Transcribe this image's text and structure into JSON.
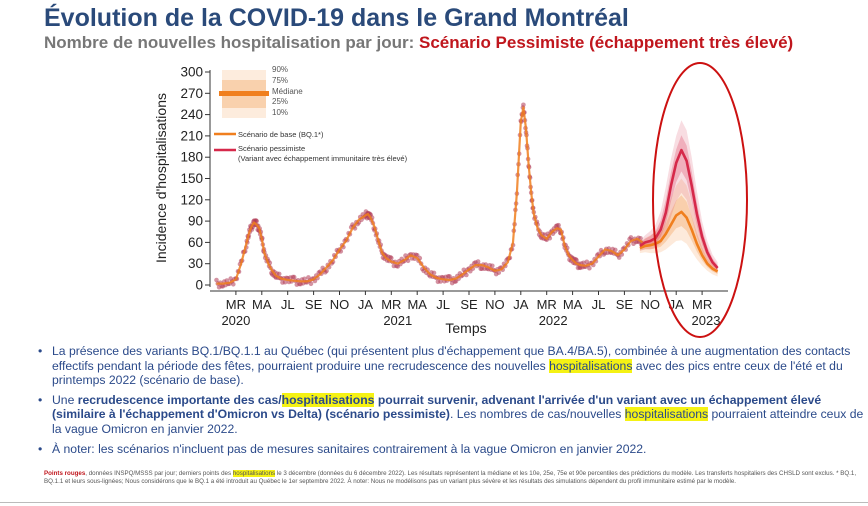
{
  "header": {
    "title": "Évolution de la COVID-19 dans le Grand Montréal",
    "subtitle_prefix": "Nombre de nouvelles hospitalisation par jour: ",
    "subtitle_scenario": "Scénario Pessimiste (échappement très élevé)"
  },
  "colors": {
    "title": "#2a4a7a",
    "scenario_red": "#c0161d",
    "base_orange": "#f07f1e",
    "pessimistic_red": "#d6294a",
    "observed_points": "#b03a55",
    "highlight": "#f5f214",
    "circle": "#cc1111"
  },
  "chart_data": {
    "type": "line",
    "ylabel": "Incidence d'hospitalisations",
    "xlabel": "Temps",
    "ylim": [
      0,
      300
    ],
    "yticks": [
      0,
      30,
      60,
      90,
      120,
      150,
      180,
      210,
      240,
      270,
      300
    ],
    "x_unit": "months since 2020-01",
    "xlim": [
      0,
      40
    ],
    "month_ticks": [
      {
        "x": 2,
        "label": "MR"
      },
      {
        "x": 4,
        "label": "MA"
      },
      {
        "x": 6,
        "label": "JL"
      },
      {
        "x": 8,
        "label": "SE"
      },
      {
        "x": 10,
        "label": "NO"
      },
      {
        "x": 12,
        "label": "JA"
      },
      {
        "x": 14,
        "label": "MR"
      },
      {
        "x": 16,
        "label": "MA"
      },
      {
        "x": 18,
        "label": "JL"
      },
      {
        "x": 20,
        "label": "SE"
      },
      {
        "x": 22,
        "label": "NO"
      },
      {
        "x": 24,
        "label": "JA"
      },
      {
        "x": 26,
        "label": "MR"
      },
      {
        "x": 28,
        "label": "MA"
      },
      {
        "x": 30,
        "label": "JL"
      },
      {
        "x": 32,
        "label": "SE"
      },
      {
        "x": 34,
        "label": "NO"
      },
      {
        "x": 36,
        "label": "JA"
      },
      {
        "x": 38,
        "label": "MR"
      }
    ],
    "year_ticks": [
      {
        "x": 2,
        "label": "2020"
      },
      {
        "x": 14.5,
        "label": "2021"
      },
      {
        "x": 26.5,
        "label": "2022"
      },
      {
        "x": 38.3,
        "label": "2023"
      }
    ],
    "legend": {
      "quantiles": [
        "90%",
        "75%",
        "Médiane",
        "25%",
        "10%"
      ],
      "base": "Scénario de base (BQ.1*)",
      "pessimistic": "Scénario pessimiste",
      "pessimistic_note": "(Variant avec échappement immunitaire très élevé)"
    },
    "series": [
      {
        "name": "Scénario de base (BQ.1*)",
        "role": "base",
        "x": [
          33.2,
          33.6,
          34.0,
          34.4,
          34.8,
          35.2,
          35.6,
          36.0,
          36.4,
          36.8,
          37.2,
          37.6,
          38.0,
          38.4,
          38.8,
          39.2
        ],
        "median": [
          52,
          55,
          56,
          58,
          62,
          72,
          85,
          98,
          103,
          95,
          78,
          58,
          42,
          30,
          23,
          19
        ],
        "p10": [
          45,
          46,
          45,
          45,
          46,
          50,
          56,
          62,
          63,
          58,
          47,
          36,
          27,
          20,
          15,
          12
        ],
        "p90": [
          60,
          66,
          70,
          75,
          84,
          100,
          122,
          140,
          150,
          140,
          115,
          88,
          64,
          45,
          33,
          27
        ]
      },
      {
        "name": "Scénario pessimiste",
        "role": "pessimistic",
        "x": [
          33.2,
          33.6,
          34.0,
          34.4,
          34.8,
          35.2,
          35.6,
          36.0,
          36.4,
          36.8,
          37.2,
          37.6,
          38.0,
          38.4,
          38.8,
          39.2
        ],
        "median": [
          55,
          60,
          62,
          66,
          78,
          102,
          140,
          172,
          190,
          175,
          140,
          100,
          68,
          46,
          32,
          24
        ],
        "p10": [
          48,
          50,
          50,
          52,
          58,
          72,
          96,
          118,
          130,
          120,
          95,
          68,
          47,
          32,
          23,
          17
        ],
        "p90": [
          62,
          70,
          76,
          85,
          104,
          138,
          178,
          210,
          232,
          218,
          180,
          132,
          90,
          62,
          43,
          32
        ]
      },
      {
        "name": "Points rouges",
        "role": "observed",
        "x": [
          0.5,
          1.0,
          1.5,
          2.0,
          2.4,
          2.8,
          3.0,
          3.2,
          3.4,
          3.6,
          3.8,
          4.0,
          4.2,
          4.5,
          4.8,
          5.1,
          5.5,
          6.0,
          6.5,
          7.0,
          7.5,
          8.0,
          8.5,
          9.0,
          9.5,
          10.0,
          10.5,
          11.0,
          11.5,
          12.0,
          12.2,
          12.4,
          12.7,
          13.0,
          13.3,
          13.6,
          14.0,
          14.5,
          15.0,
          15.5,
          16.0,
          16.5,
          17.0,
          17.5,
          18.0,
          18.5,
          19.0,
          19.5,
          20.0,
          20.5,
          21.0,
          21.5,
          22.0,
          22.5,
          23.0,
          23.4,
          23.7,
          24.0,
          24.2,
          24.4,
          24.6,
          24.8,
          25.0,
          25.3,
          25.6,
          26.0,
          26.4,
          26.8,
          27.1,
          27.4,
          27.7,
          28.0,
          28.3,
          28.6,
          29.0,
          29.5,
          30.0,
          30.5,
          31.0,
          31.5,
          32.0,
          32.5,
          33.0,
          33.4
        ],
        "values": [
          2,
          2,
          3,
          8,
          30,
          58,
          72,
          82,
          88,
          85,
          80,
          65,
          45,
          30,
          20,
          13,
          9,
          7,
          6,
          5,
          5,
          8,
          15,
          25,
          35,
          50,
          62,
          80,
          92,
          98,
          100,
          95,
          82,
          62,
          45,
          38,
          33,
          30,
          35,
          42,
          38,
          25,
          15,
          10,
          8,
          7,
          9,
          15,
          22,
          28,
          28,
          25,
          20,
          22,
          32,
          60,
          130,
          230,
          250,
          220,
          170,
          130,
          100,
          80,
          70,
          65,
          75,
          80,
          78,
          55,
          42,
          35,
          30,
          28,
          27,
          30,
          40,
          50,
          48,
          42,
          50,
          62,
          65,
          60
        ]
      }
    ]
  },
  "bullets": {
    "b1_part1": "La présence des variants BQ.1/BQ.1.1 au Québec (qui présentent plus d'échappement que BA.4/BA.5), combinée à une augmentation des contacts effectifs pendant la période des fêtes, pourraient produire une recrudescence des nouvelles ",
    "b1_hl": "hospitalisations",
    "b1_part2": " avec des pics entre ceux de l'été et du printemps 2022 (scénario de base).",
    "b2_part1": "Une ",
    "b2_bold1": "recrudescence importante des cas/",
    "b2_hl1": "hospitalisations",
    "b2_bold2": " pourrait survenir, advenant l'arrivée d'un variant avec un échappement élevé (similaire à l'échappement d'Omicron vs Delta) (scénario pessimiste)",
    "b2_part2": ". Les nombres de cas/nouvelles ",
    "b2_hl2": "hospitalisations",
    "b2_part3": " pourraient atteindre ceux de la vague Omicron en janvier 2022.",
    "b3": "À noter: les scénarios n'incluent pas de mesures sanitaires contrairement à la vague Omicron en janvier 2022."
  },
  "footnote": {
    "lead": "Points rouges",
    "part1": ", données INSPQ/MSSS par jour; derniers points des ",
    "hl": "hospitalisations",
    "part2": " le 3 décembre (données du 6 décembre 2022). Les résultats représentent la médiane et les 10e, 25e, 75e et 90e percentiles des prédictions du modèle. Les transferts hospitaliers des CHSLD sont exclus. * BQ.1, BQ.1.1 et leurs sous-lignées; Nous considérons que le BQ.1 a été introduit au Québec le 1er septembre 2022. À noter: Nous ne modélisons pas un variant plus sévère et les résultats des simulations dépendent du profil immunitaire estimé par le modèle."
  }
}
